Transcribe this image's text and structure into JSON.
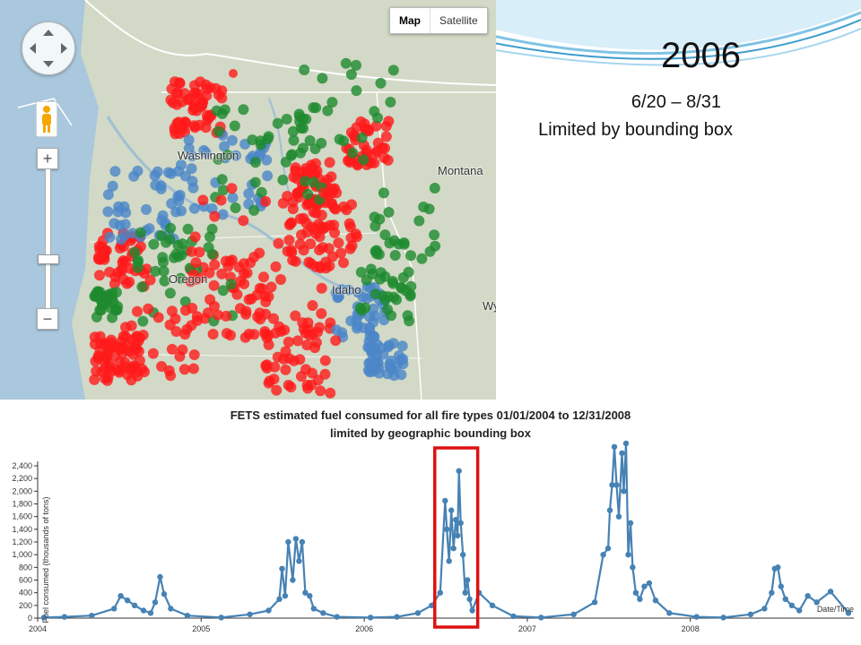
{
  "slide": {
    "year": "2006",
    "date_range": "6/20 – 8/31",
    "note": "Limited by bounding box"
  },
  "map": {
    "map_type_buttons": [
      {
        "label": "Map",
        "active": true
      },
      {
        "label": "Satellite",
        "active": false
      }
    ],
    "place_labels": [
      "Washington",
      "Montana",
      "Oregon",
      "Idaho",
      "Wy"
    ],
    "zoom_in_label": "+",
    "zoom_out_label": "−",
    "icons": [
      "pan-control-icon",
      "pegman-icon"
    ],
    "fire_colors": {
      "red": "#ff1a1a",
      "green": "#1e8a2e",
      "blue": "#4a86c8"
    }
  },
  "chart_data": {
    "type": "line",
    "title": "FETS estimated fuel consumed for all fire types 01/01/2004 to 12/31/2008",
    "subtitle": "limited by geographic bounding box",
    "xlabel": "Date/Time",
    "ylabel": "Fuel consumed (thousands of tons)",
    "ylim": [
      0,
      2400
    ],
    "yticks": [
      "0",
      "200",
      "400",
      "600",
      "800",
      "1,000",
      "1,200",
      "1,400",
      "1,600",
      "1,800",
      "2,000",
      "2,200",
      "2,400"
    ],
    "xticks": [
      "2004",
      "2005",
      "2006",
      "2007",
      "2008"
    ],
    "series_color": "#4682b4",
    "highlight": {
      "from": "2006-06-20",
      "to": "2006-08-31",
      "color": "#e01010"
    },
    "x": [
      "2004-01-15",
      "2004-03-01",
      "2004-05-01",
      "2004-06-20",
      "2004-07-05",
      "2004-07-20",
      "2004-08-05",
      "2004-08-25",
      "2004-09-10",
      "2004-09-20",
      "2004-10-01",
      "2004-10-10",
      "2004-10-25",
      "2004-12-01",
      "2005-02-15",
      "2005-04-20",
      "2005-06-01",
      "2005-06-25",
      "2005-07-01",
      "2005-07-08",
      "2005-07-15",
      "2005-07-25",
      "2005-08-01",
      "2005-08-08",
      "2005-08-15",
      "2005-08-22",
      "2005-09-01",
      "2005-09-10",
      "2005-10-01",
      "2005-11-01",
      "2006-01-15",
      "2006-03-15",
      "2006-05-01",
      "2006-06-01",
      "2006-06-20",
      "2006-07-01",
      "2006-07-05",
      "2006-07-10",
      "2006-07-15",
      "2006-07-20",
      "2006-07-25",
      "2006-07-29",
      "2006-08-01",
      "2006-08-05",
      "2006-08-10",
      "2006-08-15",
      "2006-08-20",
      "2006-08-25",
      "2006-08-31",
      "2006-09-15",
      "2006-10-15",
      "2006-12-01",
      "2007-02-01",
      "2007-04-15",
      "2007-06-01",
      "2007-06-20",
      "2007-07-01",
      "2007-07-05",
      "2007-07-10",
      "2007-07-15",
      "2007-07-20",
      "2007-07-25",
      "2007-08-01",
      "2007-08-05",
      "2007-08-10",
      "2007-08-15",
      "2007-08-20",
      "2007-08-25",
      "2007-09-01",
      "2007-09-10",
      "2007-09-20",
      "2007-10-01",
      "2007-10-15",
      "2007-11-15",
      "2008-01-15",
      "2008-03-15",
      "2008-05-15",
      "2008-06-15",
      "2008-07-01",
      "2008-07-08",
      "2008-07-15",
      "2008-07-22",
      "2008-08-01",
      "2008-08-15",
      "2008-09-01",
      "2008-09-20",
      "2008-10-10",
      "2008-11-10",
      "2008-12-20"
    ],
    "values": [
      10,
      20,
      40,
      150,
      350,
      280,
      200,
      120,
      80,
      250,
      650,
      380,
      150,
      40,
      10,
      60,
      120,
      300,
      780,
      350,
      1200,
      600,
      1250,
      900,
      1200,
      400,
      350,
      150,
      80,
      20,
      10,
      20,
      80,
      200,
      400,
      1850,
      1400,
      900,
      1700,
      1100,
      1550,
      1300,
      2320,
      1500,
      1000,
      400,
      600,
      300,
      120,
      400,
      200,
      30,
      10,
      60,
      250,
      1000,
      1100,
      1700,
      2100,
      2700,
      2100,
      1600,
      2600,
      2000,
      2800,
      1000,
      1500,
      800,
      400,
      300,
      500,
      550,
      280,
      80,
      20,
      10,
      60,
      150,
      400,
      780,
      800,
      500,
      300,
      200,
      120,
      350,
      250,
      420,
      80
    ]
  }
}
